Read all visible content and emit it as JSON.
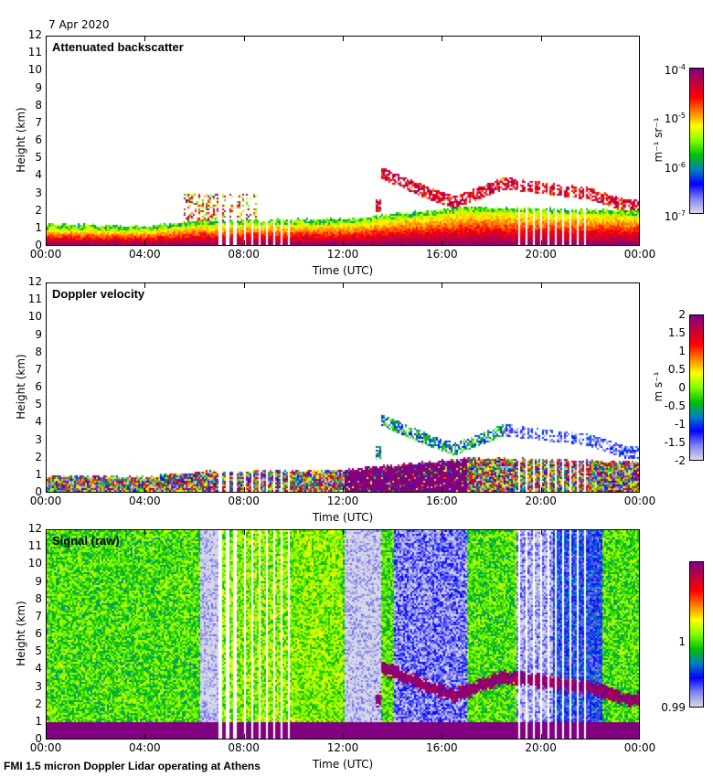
{
  "header": {
    "date": "7 Apr 2020"
  },
  "footer": {
    "text": "FMI 1.5 micron Doppler Lidar operating at Athens"
  },
  "chart_data": [
    {
      "type": "heatmap",
      "title": "Attenuated backscatter",
      "xlabel": "Time (UTC)",
      "ylabel": "Height (km)",
      "xticks": [
        "00:00",
        "04:00",
        "08:00",
        "12:00",
        "16:00",
        "20:00",
        "00:00"
      ],
      "yticks": [
        "0",
        "1",
        "2",
        "3",
        "4",
        "5",
        "6",
        "7",
        "8",
        "9",
        "10",
        "11",
        "12"
      ],
      "ylim": [
        0,
        12
      ],
      "xlim_hours": [
        0,
        24
      ],
      "colorbar": {
        "label": "m⁻¹ sr⁻¹",
        "scale": "log",
        "range": [
          1e-07,
          0.0001
        ],
        "ticks": [
          {
            "base": "10",
            "exp": "-4"
          },
          {
            "base": "10",
            "exp": "-5"
          },
          {
            "base": "10",
            "exp": "-6"
          },
          {
            "base": "10",
            "exp": "-7"
          }
        ]
      },
      "features": {
        "boundary_layer_top_km": [
          [
            0,
            1.0
          ],
          [
            4,
            0.9
          ],
          [
            6,
            1.2
          ],
          [
            12,
            1.3
          ],
          [
            17,
            2.0
          ],
          [
            24,
            1.8
          ]
        ],
        "cloud_layer_km": [
          [
            13.5,
            4.2
          ],
          [
            15.5,
            3.0
          ],
          [
            16.5,
            2.5
          ],
          [
            18.5,
            3.6
          ],
          [
            22,
            3.0
          ],
          [
            23.5,
            2.3
          ]
        ]
      }
    },
    {
      "type": "heatmap",
      "title": "Doppler velocity",
      "xlabel": "Time (UTC)",
      "ylabel": "Height (km)",
      "xticks": [
        "00:00",
        "04:00",
        "08:00",
        "12:00",
        "16:00",
        "20:00",
        "00:00"
      ],
      "yticks": [
        "0",
        "1",
        "2",
        "3",
        "4",
        "5",
        "6",
        "7",
        "8",
        "9",
        "10",
        "11",
        "12"
      ],
      "ylim": [
        0,
        12
      ],
      "xlim_hours": [
        0,
        24
      ],
      "colorbar": {
        "label": "m s⁻¹",
        "scale": "linear",
        "range": [
          -2,
          2
        ],
        "ticks": [
          "2",
          "1.5",
          "1",
          "0.5",
          "0",
          "-0.5",
          "-1",
          "-1.5",
          "-2"
        ]
      }
    },
    {
      "type": "heatmap",
      "title": "Signal (raw)",
      "xlabel": "Time (UTC)",
      "ylabel": "Height (km)",
      "xticks": [
        "00:00",
        "04:00",
        "08:00",
        "12:00",
        "16:00",
        "20:00",
        "00:00"
      ],
      "yticks": [
        "0",
        "1",
        "2",
        "3",
        "4",
        "5",
        "6",
        "7",
        "8",
        "9",
        "10",
        "11",
        "12"
      ],
      "ylim": [
        0,
        12
      ],
      "xlim_hours": [
        0,
        24
      ],
      "colorbar": {
        "label": "",
        "scale": "linear",
        "range": [
          0.99,
          1.01
        ],
        "ticks": [
          "1",
          "0.99"
        ]
      }
    }
  ],
  "colors": {
    "colormap": [
      "#d8d8e8",
      "#8080f0",
      "#0000ff",
      "#0080c0",
      "#00c000",
      "#80ff00",
      "#ffff00",
      "#ff8000",
      "#ff0000",
      "#c00040",
      "#800080"
    ]
  }
}
